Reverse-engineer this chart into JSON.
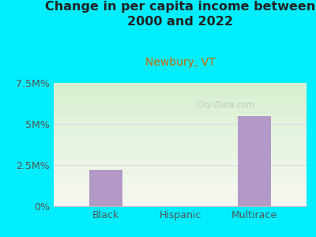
{
  "title": "Change in per capita income between\n2000 and 2022",
  "subtitle": "Newbury, VT",
  "categories": [
    "Black",
    "Hispanic",
    "Multirace"
  ],
  "values": [
    2.2,
    0,
    5.5
  ],
  "bar_color": "#b399c8",
  "title_fontsize": 11.5,
  "subtitle_fontsize": 10,
  "title_color": "#222222",
  "subtitle_color": "#cc6600",
  "tick_label_fontsize": 9,
  "background_color": "#00eeff",
  "plot_bg_green": "#d6f0d0",
  "plot_bg_white": "#f8f8f2",
  "ylim": [
    0,
    7.5
  ],
  "yticks": [
    0,
    2.5,
    5.0,
    7.5
  ],
  "ytick_labels": [
    "0%",
    "2.5M%",
    "5M%",
    "7.5M%"
  ],
  "grid_color": "#e0d8e8",
  "watermark": "City-Data.com"
}
